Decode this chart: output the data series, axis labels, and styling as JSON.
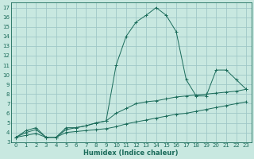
{
  "xlabel": "Humidex (Indice chaleur)",
  "bg_color": "#c8e8e0",
  "grid_color": "#a0c8c8",
  "line_color": "#1a6b5a",
  "xlim": [
    -0.5,
    23.5
  ],
  "ylim": [
    3,
    17.5
  ],
  "xticks": [
    0,
    1,
    2,
    3,
    4,
    5,
    6,
    7,
    8,
    9,
    10,
    11,
    12,
    13,
    14,
    15,
    16,
    17,
    18,
    19,
    20,
    21,
    22,
    23
  ],
  "yticks": [
    3,
    4,
    5,
    6,
    7,
    8,
    9,
    10,
    11,
    12,
    13,
    14,
    15,
    16,
    17
  ],
  "series_peak_x": [
    0,
    1,
    2,
    3,
    4,
    5,
    6,
    7,
    8,
    9,
    10,
    11,
    12,
    13,
    14,
    15,
    16,
    17,
    18,
    19,
    20,
    21,
    22,
    23
  ],
  "series_peak_y": [
    3.5,
    4.2,
    4.5,
    3.5,
    3.5,
    4.5,
    4.5,
    4.7,
    5.0,
    5.2,
    11.0,
    14.0,
    15.5,
    16.2,
    17.0,
    16.2,
    14.5,
    9.5,
    7.8,
    7.8,
    10.5,
    10.5,
    9.5,
    8.5
  ],
  "series_mid_x": [
    0,
    1,
    2,
    3,
    4,
    5,
    6,
    7,
    8,
    9,
    10,
    11,
    12,
    13,
    14,
    15,
    16,
    17,
    18,
    19,
    20,
    21,
    22,
    23
  ],
  "series_mid_y": [
    3.5,
    4.0,
    4.3,
    3.5,
    3.5,
    4.3,
    4.5,
    4.7,
    5.0,
    5.2,
    6.0,
    6.5,
    7.0,
    7.2,
    7.3,
    7.5,
    7.7,
    7.8,
    7.9,
    8.0,
    8.1,
    8.2,
    8.3,
    8.5
  ],
  "series_low_x": [
    0,
    1,
    2,
    3,
    4,
    5,
    6,
    7,
    8,
    9,
    10,
    11,
    12,
    13,
    14,
    15,
    16,
    17,
    18,
    19,
    20,
    21,
    22,
    23
  ],
  "series_low_y": [
    3.5,
    3.7,
    3.9,
    3.5,
    3.5,
    4.0,
    4.1,
    4.2,
    4.3,
    4.4,
    4.6,
    4.9,
    5.1,
    5.3,
    5.5,
    5.7,
    5.9,
    6.0,
    6.2,
    6.4,
    6.6,
    6.8,
    7.0,
    7.2
  ]
}
